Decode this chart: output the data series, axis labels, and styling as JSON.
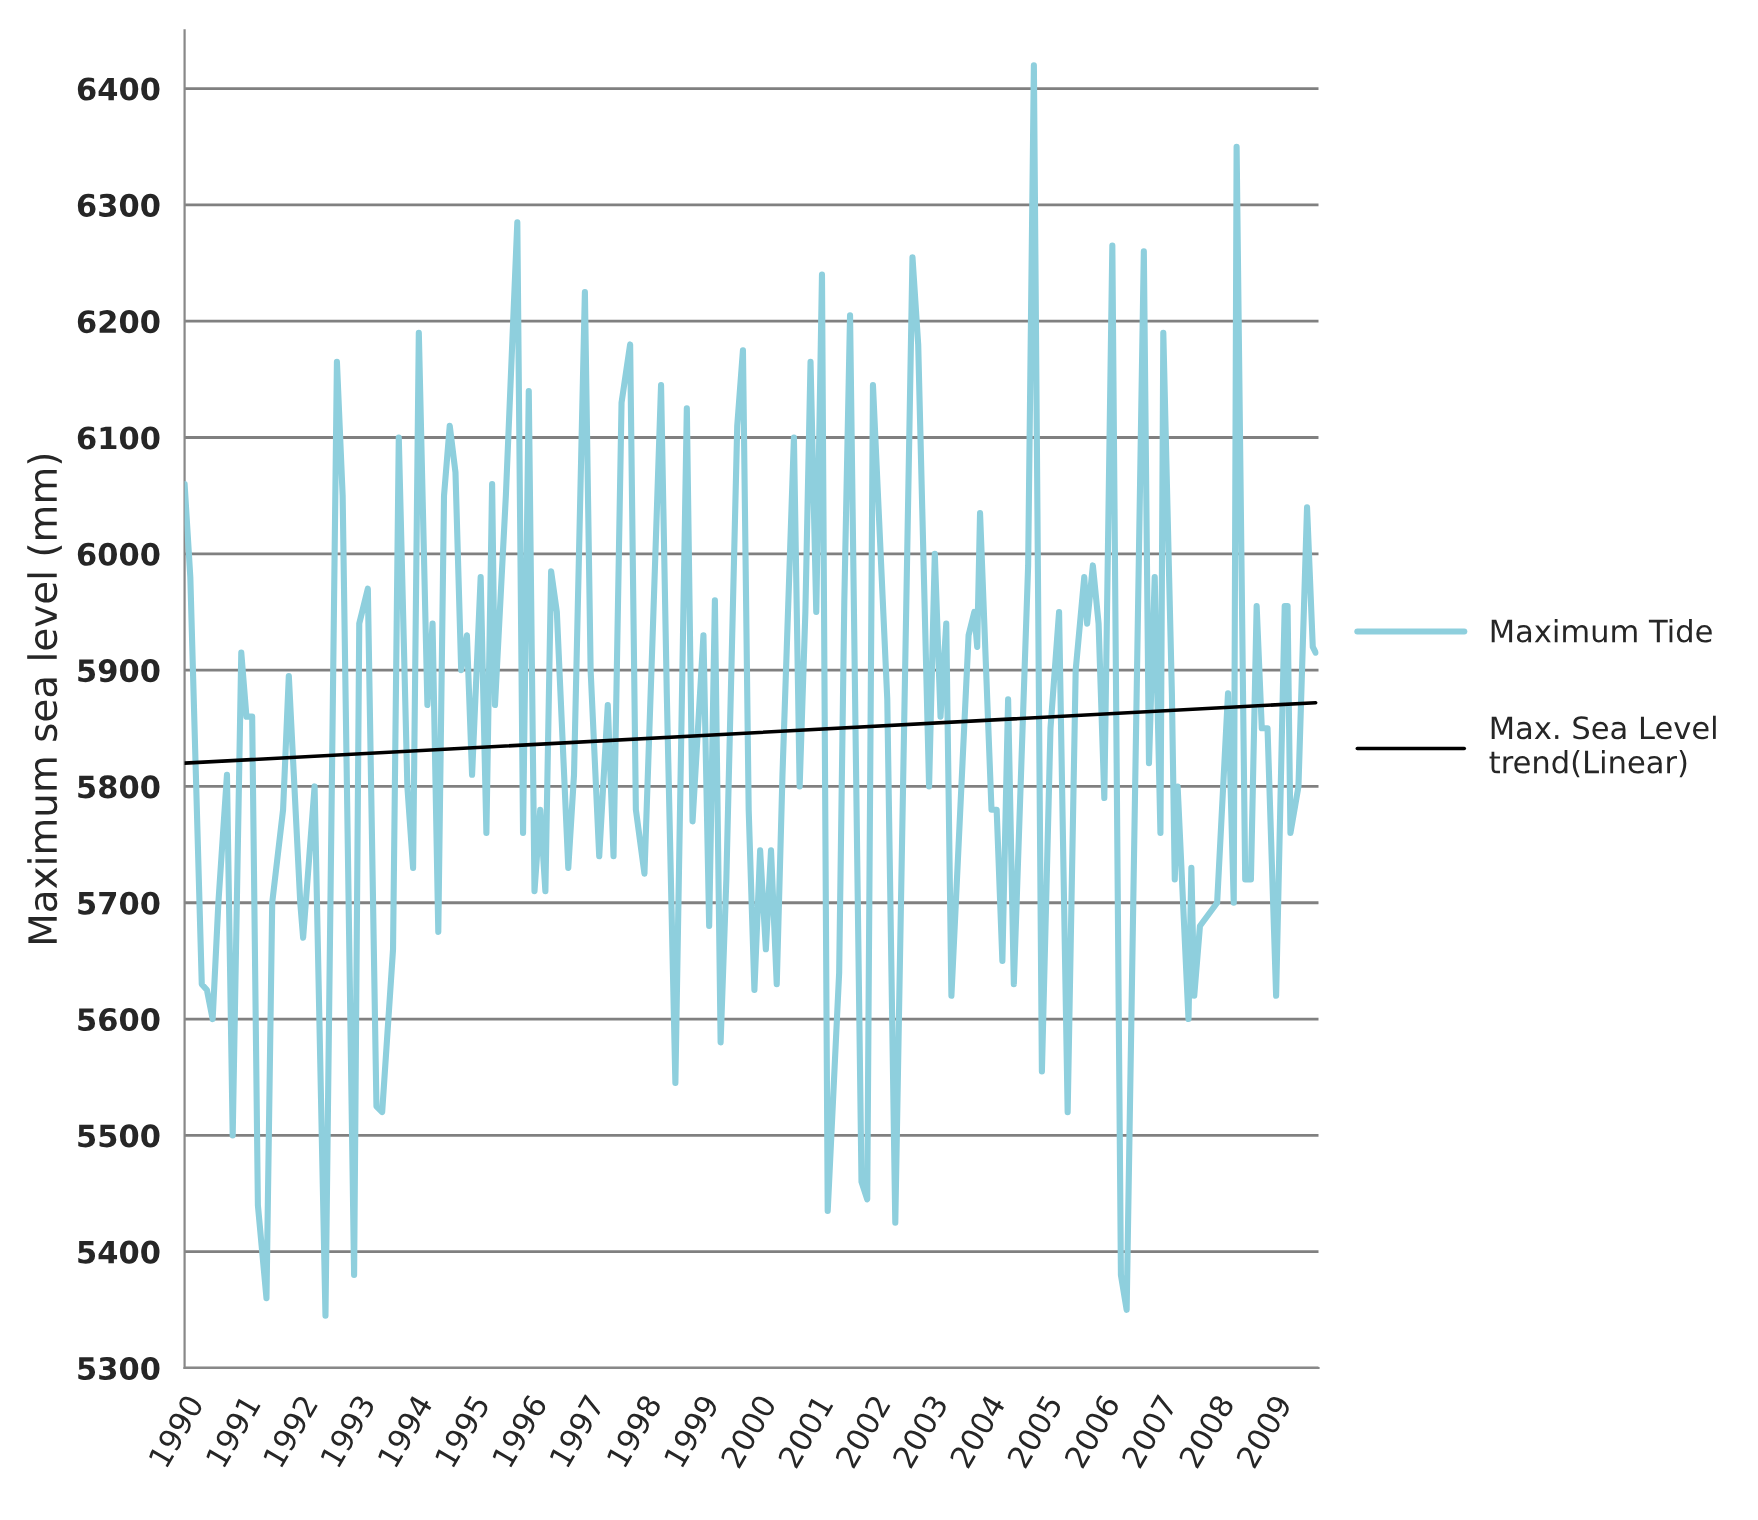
{
  "chart_data": {
    "type": "line",
    "ylabel": "Maximum sea level (mm)",
    "xlim": [
      1990,
      2009.8
    ],
    "xticks": [
      1990,
      1991,
      1992,
      1993,
      1994,
      1995,
      1996,
      1997,
      1998,
      1999,
      2000,
      2001,
      2002,
      2003,
      2004,
      2005,
      2006,
      2007,
      2008,
      2009
    ],
    "ylim": [
      5300,
      6450
    ],
    "yticks": [
      5300,
      5400,
      5500,
      5600,
      5700,
      5800,
      5900,
      6000,
      6100,
      6200,
      6300,
      6400
    ],
    "grid": "y",
    "legend": "right",
    "marker": "none",
    "line_style": "solid",
    "series": [
      {
        "name": "Maximum Tide",
        "color": "#8ecfdd",
        "x": [
          1990.0,
          1990.1,
          1990.3,
          1990.39,
          1990.49,
          1990.59,
          1990.74,
          1990.84,
          1990.99,
          1991.08,
          1991.18,
          1991.28,
          1991.43,
          1991.53,
          1991.72,
          1991.82,
          1992.02,
          1992.07,
          1992.27,
          1992.46,
          1992.66,
          1992.76,
          1992.96,
          1993.05,
          1993.2,
          1993.35,
          1993.45,
          1993.64,
          1993.74,
          1993.89,
          1993.99,
          1994.09,
          1994.24,
          1994.33,
          1994.43,
          1994.53,
          1994.63,
          1994.73,
          1994.83,
          1994.93,
          1995.02,
          1995.17,
          1995.27,
          1995.37,
          1995.42,
          1995.61,
          1995.81,
          1995.91,
          1996.01,
          1996.11,
          1996.21,
          1996.3,
          1996.4,
          1996.5,
          1996.7,
          1996.8,
          1996.99,
          1997.09,
          1997.24,
          1997.39,
          1997.49,
          1997.63,
          1997.78,
          1997.88,
          1998.03,
          1998.18,
          1998.32,
          1998.42,
          1998.57,
          1998.77,
          1998.87,
          1999.06,
          1999.16,
          1999.26,
          1999.36,
          1999.46,
          1999.65,
          1999.75,
          1999.85,
          1999.95,
          2000.05,
          2000.15,
          2000.24,
          2000.34,
          2000.44,
          2000.64,
          2000.74,
          2000.84,
          2000.93,
          2001.03,
          2001.13,
          2001.23,
          2001.43,
          2001.52,
          2001.62,
          2001.82,
          2001.92,
          2002.02,
          2002.27,
          2002.41,
          2002.71,
          2002.81,
          2003.0,
          2003.1,
          2003.2,
          2003.3,
          2003.39,
          2003.69,
          2003.79,
          2003.84,
          2003.89,
          2004.09,
          2004.18,
          2004.28,
          2004.38,
          2004.48,
          2004.73,
          2004.83,
          2004.97,
          2005.12,
          2005.27,
          2005.42,
          2005.56,
          2005.71,
          2005.76,
          2005.86,
          2005.96,
          2006.06,
          2006.2,
          2006.35,
          2006.45,
          2006.75,
          2006.84,
          2006.94,
          2007.04,
          2007.09,
          2007.24,
          2007.29,
          2007.34,
          2007.53,
          2007.58,
          2007.63,
          2007.73,
          2008.03,
          2008.22,
          2008.32,
          2008.37,
          2008.52,
          2008.62,
          2008.72,
          2008.81,
          2008.91,
          2009.06,
          2009.21,
          2009.26,
          2009.31,
          2009.45,
          2009.6,
          2009.7,
          2009.75
        ],
        "values": [
          6060,
          5980,
          5630,
          5625,
          5600,
          5700,
          5810,
          5500,
          5915,
          5860,
          5860,
          5440,
          5360,
          5700,
          5780,
          5895,
          5700,
          5670,
          5800,
          5345,
          6165,
          6050,
          5380,
          5940,
          5970,
          5525,
          5520,
          5660,
          6100,
          5800,
          5730,
          6190,
          5870,
          5940,
          5675,
          6050,
          6110,
          6070,
          5900,
          5930,
          5810,
          5980,
          5760,
          6060,
          5870,
          6050,
          6285,
          5760,
          6140,
          5710,
          5780,
          5710,
          5985,
          5950,
          5730,
          5810,
          6225,
          5900,
          5740,
          5870,
          5740,
          6130,
          6180,
          5780,
          5725,
          5940,
          6145,
          5880,
          5545,
          6125,
          5770,
          5930,
          5680,
          5960,
          5580,
          5720,
          6110,
          6175,
          5780,
          5625,
          5745,
          5660,
          5745,
          5630,
          5810,
          6100,
          5800,
          5950,
          6165,
          5950,
          6240,
          5435,
          5640,
          5960,
          6205,
          5460,
          5445,
          6145,
          5875,
          5425,
          6255,
          6180,
          5800,
          6000,
          5860,
          5940,
          5620,
          5930,
          5950,
          5920,
          6035,
          5780,
          5780,
          5650,
          5875,
          5630,
          5990,
          6420,
          5555,
          5850,
          5950,
          5520,
          5900,
          5980,
          5940,
          5990,
          5940,
          5790,
          6265,
          5380,
          5350,
          6260,
          5820,
          5980,
          5760,
          6190,
          5880,
          5720,
          5800,
          5600,
          5730,
          5620,
          5680,
          5700,
          5880,
          5700,
          6350,
          5720,
          5720,
          5955,
          5850,
          5850,
          5620,
          5955,
          5955,
          5760,
          5800,
          6040,
          5920,
          5915
        ]
      },
      {
        "name": "Max. Sea Level\ntrend(Linear)",
        "color": "#000000",
        "x": [
          1990,
          2009.75
        ],
        "values": [
          5820,
          5872
        ]
      }
    ]
  }
}
